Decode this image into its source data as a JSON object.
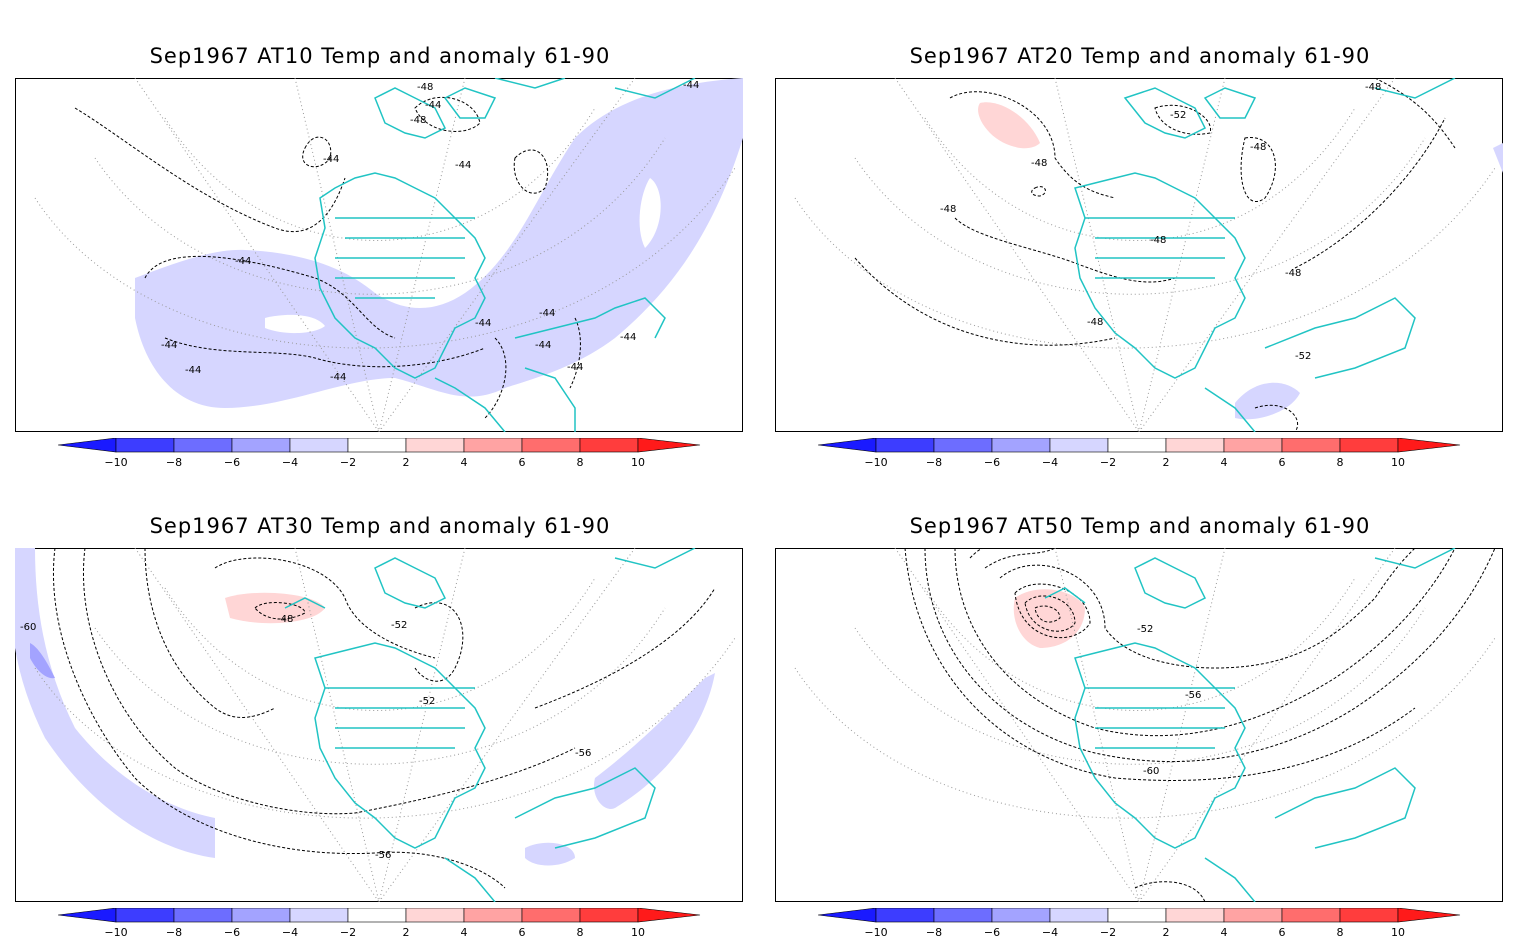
{
  "panels": [
    {
      "title": "Sep1967 AT10 Temp and anomaly 61-90",
      "contour_labels": [
        "-48",
        "-44",
        "-48",
        "-44",
        "-44",
        "-44",
        "-44",
        "-44",
        "-44",
        "-44",
        "-44",
        "-44",
        "-44",
        "-44",
        "-44"
      ]
    },
    {
      "title": "Sep1967 AT20 Temp and anomaly 61-90",
      "contour_labels": [
        "-48",
        "-52",
        "-48",
        "-48",
        "-48",
        "-48",
        "-48",
        "-48",
        "-52"
      ]
    },
    {
      "title": "Sep1967 AT30 Temp and anomaly 61-90",
      "contour_labels": [
        "-60",
        "-48",
        "-52",
        "-52",
        "-56",
        "-56"
      ]
    },
    {
      "title": "Sep1967 AT50 Temp and anomaly 61-90",
      "contour_labels": [
        "-52",
        "-56",
        "-60"
      ]
    }
  ],
  "colorbar": {
    "tick_labels": [
      "−10",
      "−8",
      "−6",
      "−4",
      "−2",
      "2",
      "4",
      "6",
      "8",
      "10"
    ],
    "colors": [
      "#1a1aff",
      "#3d3dff",
      "#6d6dff",
      "#a3a3ff",
      "#d6d6ff",
      "#ffffff",
      "#ffd6d6",
      "#ffa3a3",
      "#ff6d6d",
      "#ff3d3d",
      "#ff1a1a"
    ]
  },
  "colors": {
    "coastline": "#21c4c4",
    "cold_anomaly": "#d6d6ff",
    "cold_anomaly_strong": "#a3a3ff",
    "warm_anomaly": "#ffd6d6",
    "contour": "#000000",
    "grid": "#888888"
  }
}
